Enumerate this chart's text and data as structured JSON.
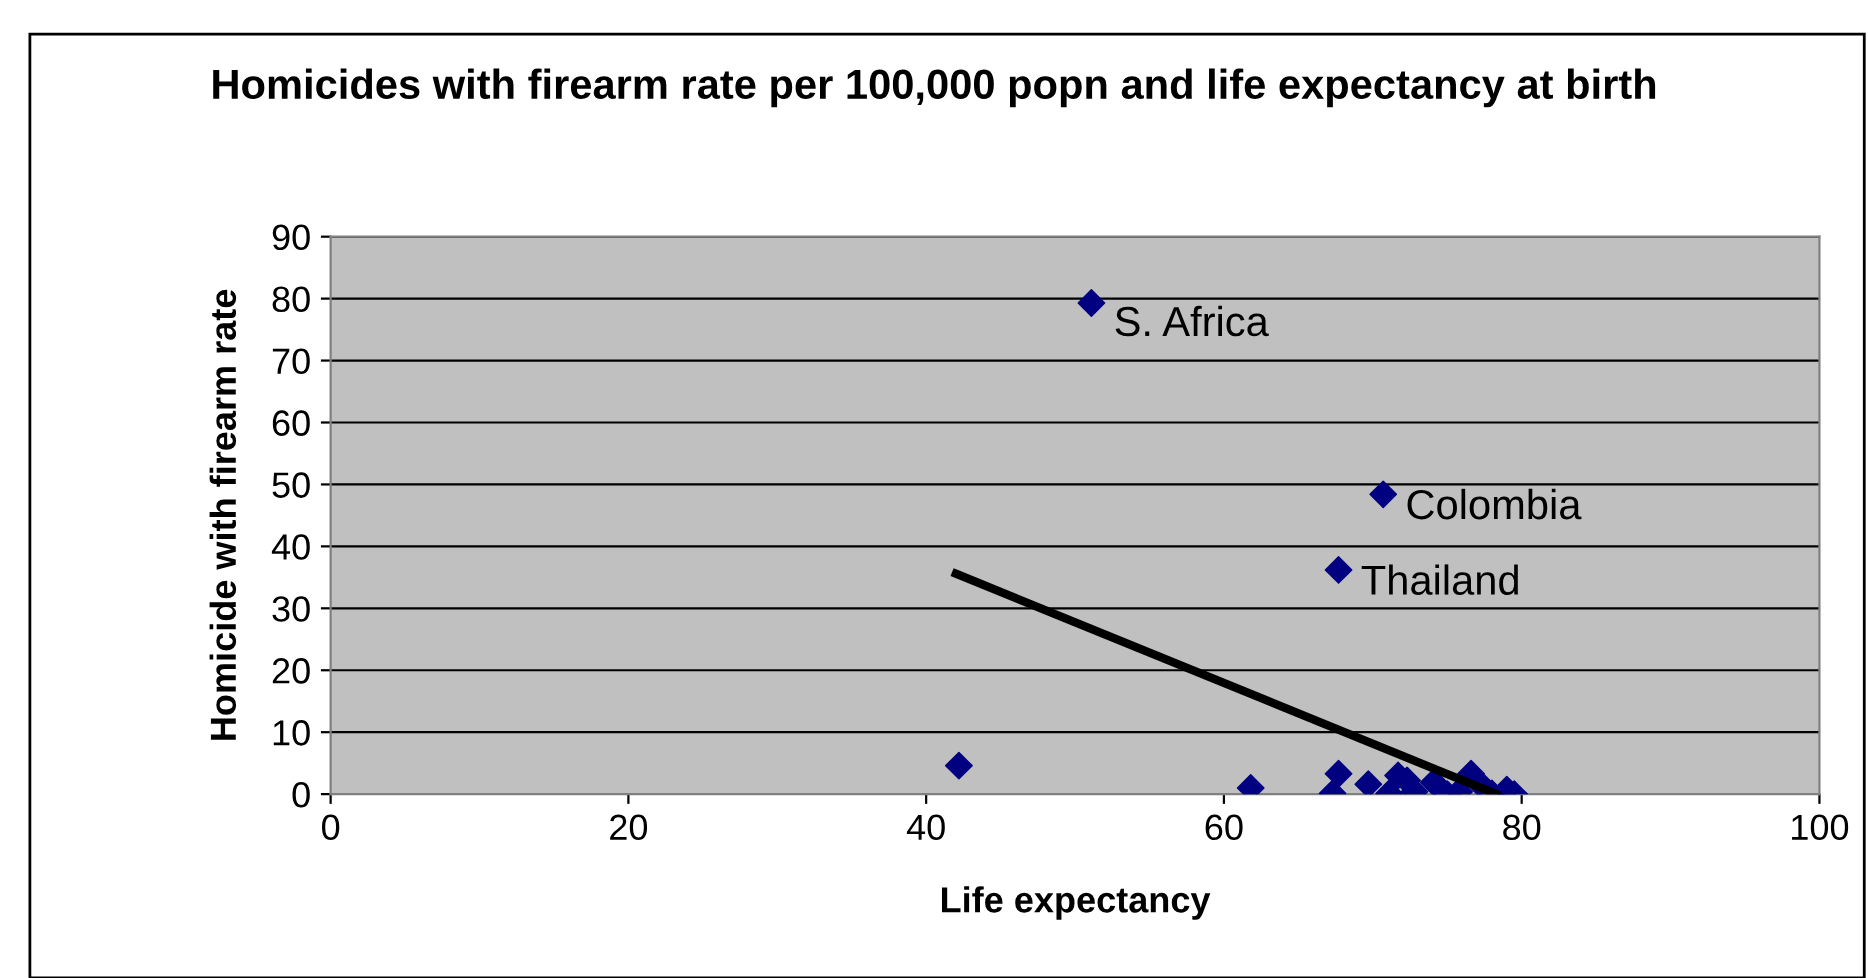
{
  "chart_data": {
    "type": "scatter",
    "title": "Homicides with firearm rate per 100,000 popn and life expectancy at birth",
    "xlabel": "Life expectancy",
    "ylabel": "Homicide with firearm rate",
    "series": [
      {
        "color": "#000080",
        "marker": "diamond",
        "x": [
          51.1,
          70.7,
          67.7,
          42.2,
          61.8,
          67.3,
          67.7,
          69.7,
          71.1,
          71.7,
          72.3,
          72.8,
          74.1,
          75.0,
          75.8,
          76.6,
          77.1,
          78.0,
          79.0,
          79.5
        ],
        "values": [
          79.3,
          48.4,
          36.2,
          4.6,
          1.0,
          0.1,
          3.3,
          1.6,
          0.1,
          3.0,
          2.2,
          0.4,
          1.9,
          0.0,
          0.4,
          3.3,
          1.9,
          0.1,
          0.7,
          0.0
        ]
      },
      {
        "type": "line",
        "color": "#000000",
        "marker": "none",
        "line_style": "solid",
        "x": [
          42.0,
          78.3
        ],
        "values": [
          35.6,
          0.0
        ]
      }
    ],
    "annotations": [
      {
        "text": "S. Africa",
        "x": 51.1,
        "y": 79.3
      },
      {
        "text": "Colombia",
        "x": 70.7,
        "y": 48.4
      },
      {
        "text": "Thailand",
        "x": 67.7,
        "y": 36.2
      }
    ],
    "xlim": [
      0,
      100
    ],
    "xticks": [
      0,
      20,
      40,
      60,
      80,
      100
    ],
    "ylim": [
      0,
      90
    ],
    "yticks": [
      0,
      10,
      20,
      30,
      40,
      50,
      60,
      70,
      80,
      90
    ],
    "grid": "y",
    "legend": false
  }
}
